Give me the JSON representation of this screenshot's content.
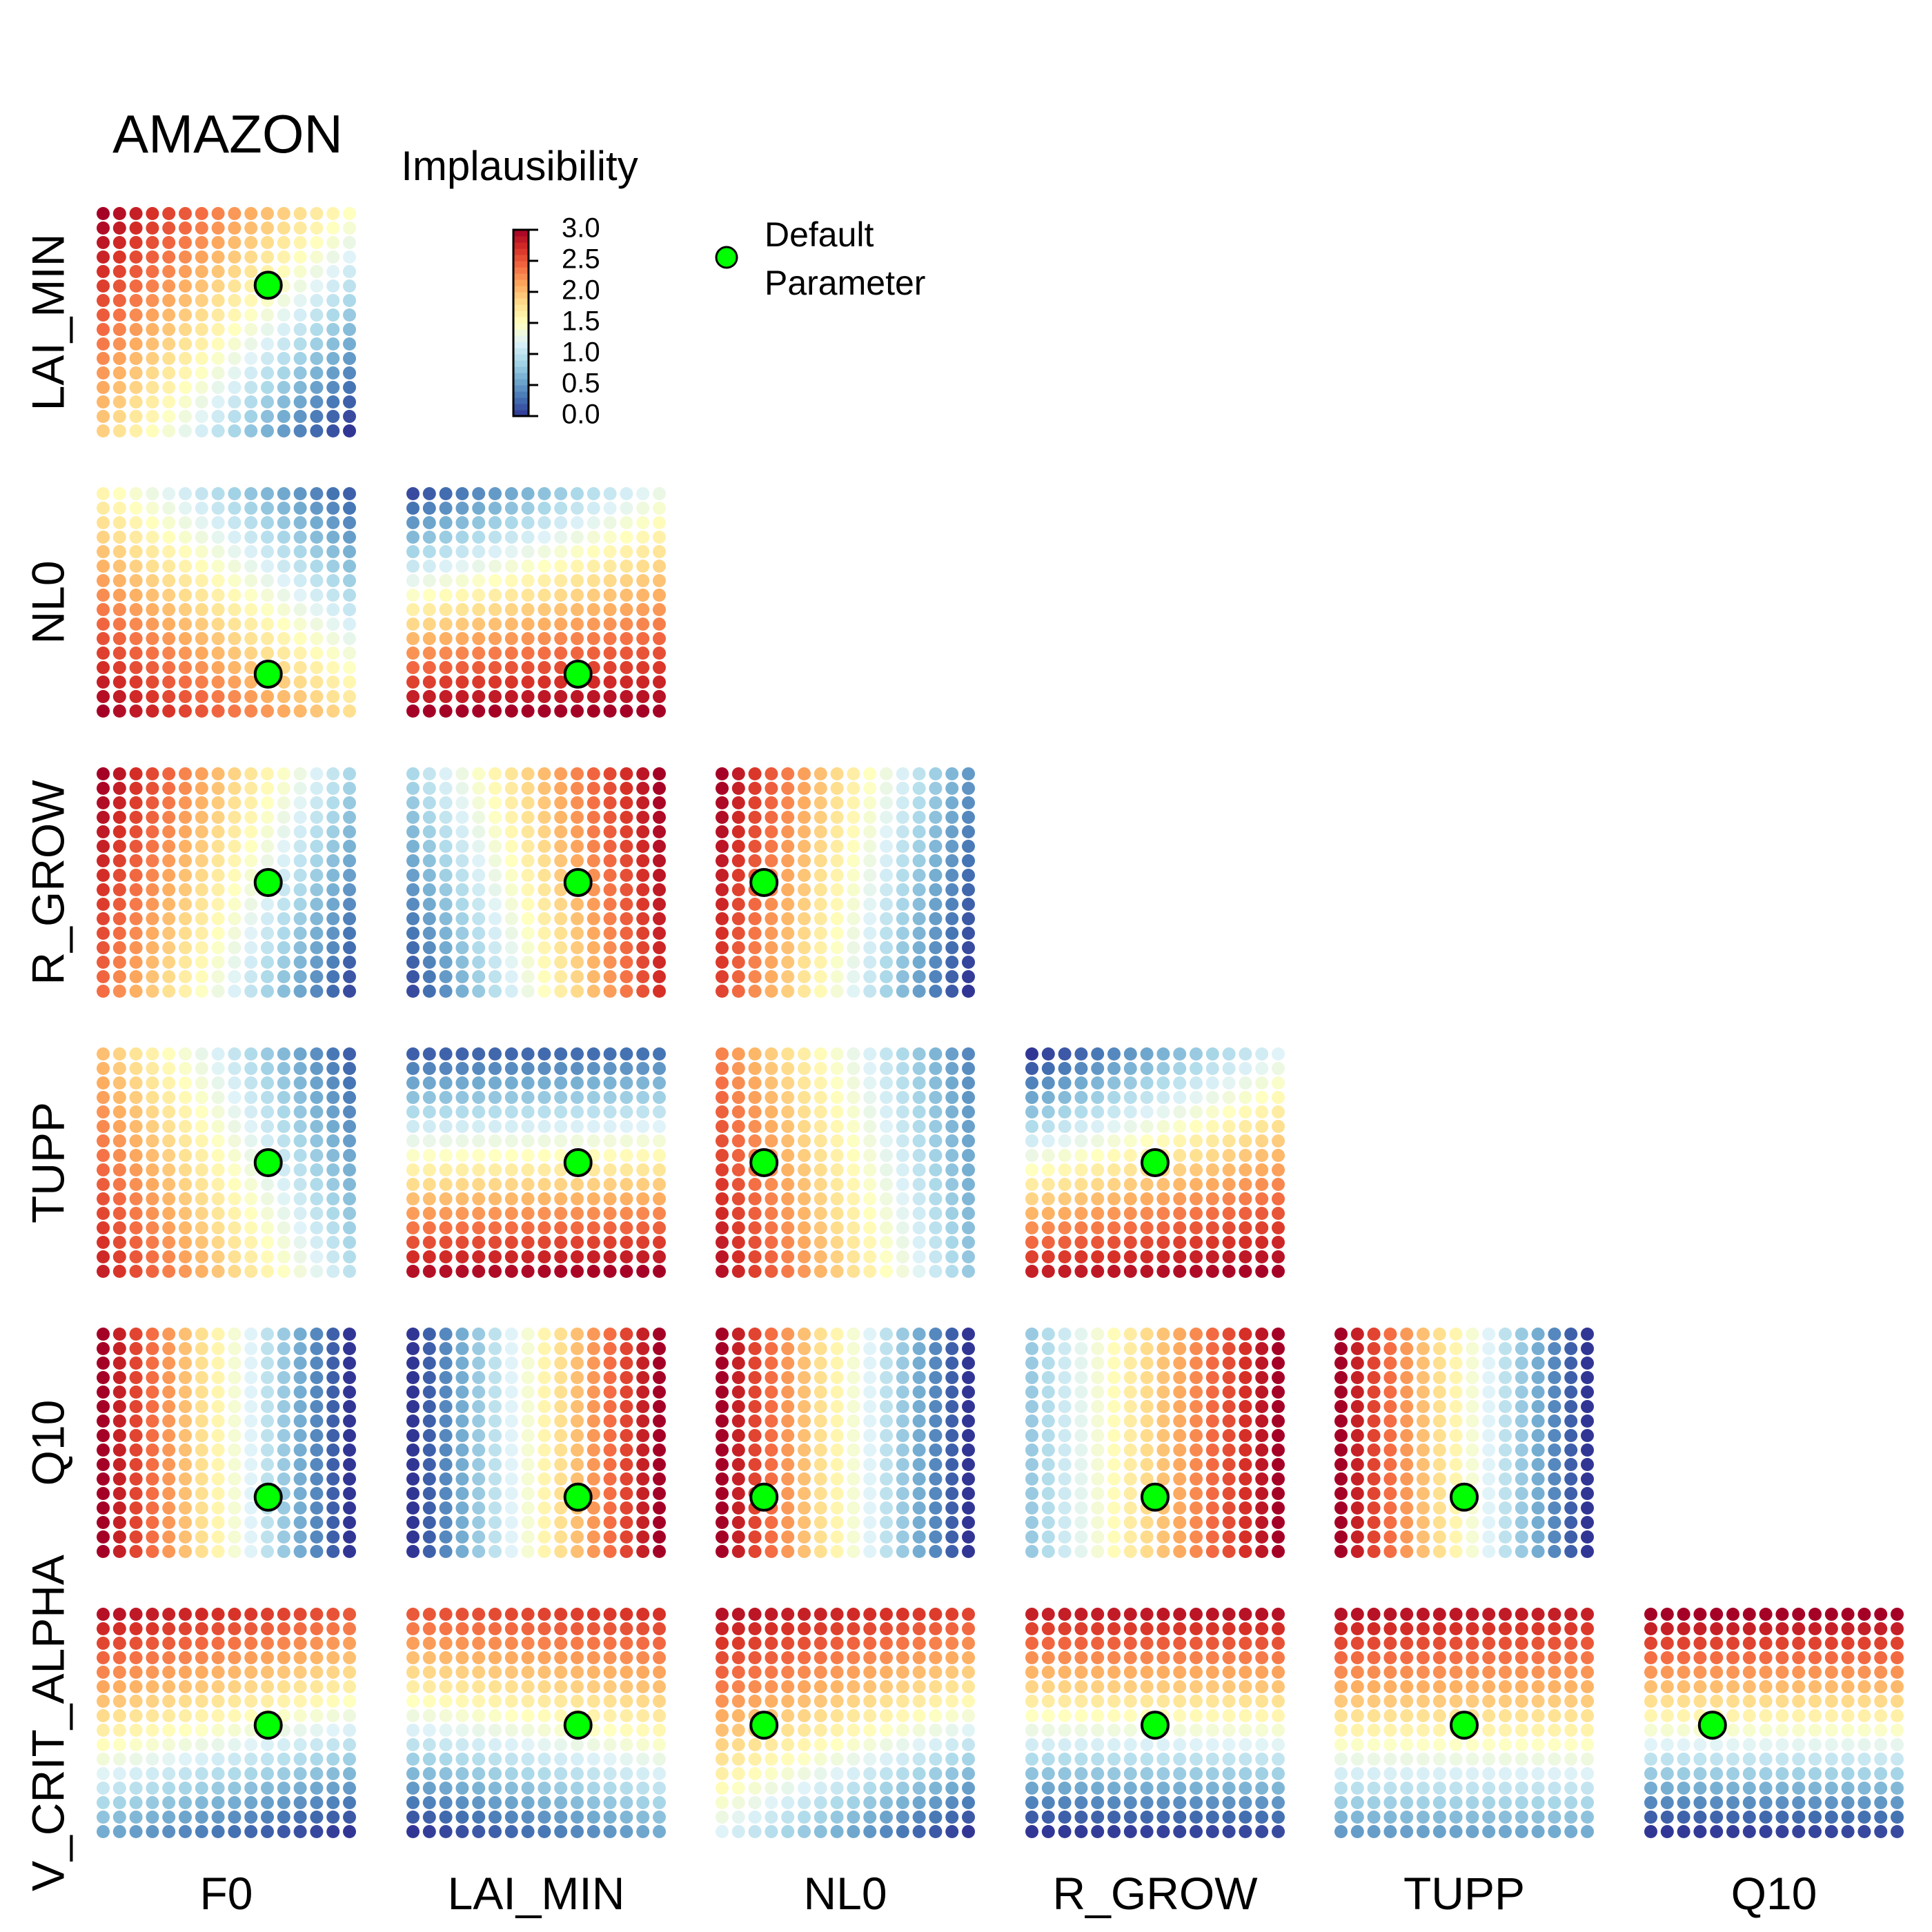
{
  "chart_data": {
    "type": "heatmap",
    "title": "AMAZON",
    "colorbar": {
      "title": "Implausibility",
      "ticks": [
        "3.0",
        "2.5",
        "2.0",
        "1.5",
        "1.0",
        "0.5",
        "0.0"
      ],
      "range": [
        0,
        3
      ],
      "colors": [
        "#313695",
        "#4575b4",
        "#74add1",
        "#abd9e9",
        "#e0f3f8",
        "#ffffbf",
        "#fee090",
        "#fdae61",
        "#f46d43",
        "#d73027",
        "#a50026"
      ]
    },
    "legend": {
      "label_line1": "Default",
      "label_line2": "Parameter",
      "marker_color": "#00ff00",
      "placement": "top"
    },
    "parameters": [
      "F0",
      "LAI_MIN",
      "NL0",
      "R_GROW",
      "TUPP",
      "Q10",
      "V_CRIT_ALPHA"
    ],
    "row_labels": [
      "LAI_MIN",
      "NL0",
      "R_GROW",
      "TUPP",
      "Q10",
      "V_CRIT_ALPHA"
    ],
    "column_labels": [
      "F0",
      "LAI_MIN",
      "NL0",
      "R_GROW",
      "TUPP",
      "Q10"
    ],
    "grid_resolution": [
      16,
      16
    ],
    "default_parameter": {
      "F0": 0.67,
      "LAI_MIN": 0.67,
      "NL0": 0.17,
      "R_GROW": 0.5,
      "TUPP": 0.5,
      "Q10": 0.25,
      "V_CRIT_ALPHA": 0.49
    },
    "panel_patterns": {
      "LAI_MIN|F0": {
        "tl": 3.0,
        "tr": 1.5,
        "bl": 1.9,
        "br": 0.0
      },
      "NL0|F0": {
        "tl": 1.6,
        "tr": 0.2,
        "bl": 3.0,
        "br": 1.8
      },
      "NL0|LAI_MIN": {
        "tl": 0.1,
        "tr": 1.3,
        "bl": 3.0,
        "br": 3.0
      },
      "R_GROW|F0": {
        "tl": 3.0,
        "tr": 0.9,
        "bl": 2.4,
        "br": 0.1
      },
      "R_GROW|LAI_MIN": {
        "tl": 0.9,
        "tr": 3.0,
        "bl": 0.1,
        "br": 2.7
      },
      "R_GROW|NL0": {
        "tl": 3.0,
        "tr": 0.5,
        "bl": 2.6,
        "br": 0.0
      },
      "TUPP|F0": {
        "tl": 2.0,
        "tr": 0.2,
        "bl": 2.8,
        "br": 1.0
      },
      "TUPP|LAI_MIN": {
        "tl": 0.2,
        "tr": 0.3,
        "bl": 2.9,
        "br": 3.0
      },
      "TUPP|NL0": {
        "tl": 2.3,
        "tr": 0.4,
        "bl": 2.9,
        "br": 0.8
      },
      "TUPP|R_GROW": {
        "tl": 0.0,
        "tr": 1.2,
        "bl": 2.8,
        "br": 3.0
      },
      "Q10|F0": {
        "tl": 3.0,
        "tr": 0.0,
        "bl": 3.0,
        "br": 0.0
      },
      "Q10|LAI_MIN": {
        "tl": 0.0,
        "tr": 3.0,
        "bl": 0.0,
        "br": 3.0
      },
      "Q10|NL0": {
        "tl": 3.0,
        "tr": 0.0,
        "bl": 3.0,
        "br": 0.0
      },
      "Q10|R_GROW": {
        "tl": 0.8,
        "tr": 3.0,
        "bl": 0.8,
        "br": 3.0
      },
      "Q10|TUPP": {
        "tl": 3.0,
        "tr": 0.0,
        "bl": 3.0,
        "br": 0.0
      },
      "V_CRIT_ALPHA|F0": {
        "tl": 2.9,
        "tr": 2.5,
        "bl": 0.6,
        "br": 0.0
      },
      "V_CRIT_ALPHA|LAI_MIN": {
        "tl": 2.5,
        "tr": 2.7,
        "bl": 0.0,
        "br": 0.6
      },
      "V_CRIT_ALPHA|NL0": {
        "tl": 2.9,
        "tr": 2.6,
        "bl": 1.2,
        "br": 0.0
      },
      "V_CRIT_ALPHA|R_GROW": {
        "tl": 2.8,
        "tr": 2.9,
        "bl": 0.0,
        "br": 0.1
      },
      "V_CRIT_ALPHA|TUPP": {
        "tl": 2.9,
        "tr": 2.8,
        "bl": 0.5,
        "br": 0.6
      },
      "V_CRIT_ALPHA|Q10": {
        "tl": 3.0,
        "tr": 3.0,
        "bl": 0.0,
        "br": 0.1
      }
    }
  }
}
